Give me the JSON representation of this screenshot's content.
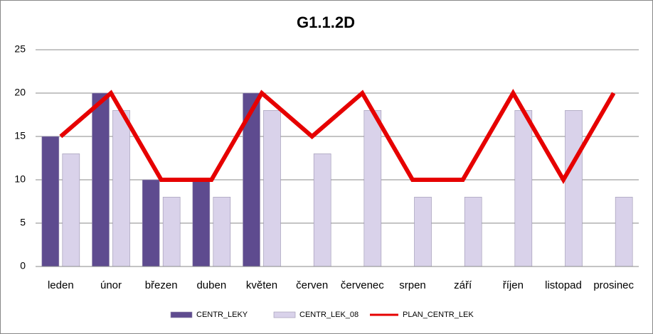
{
  "chart_data": {
    "type": "bar",
    "title": "G1.1.2D",
    "categories": [
      "leden",
      "únor",
      "březen",
      "duben",
      "květen",
      "červen",
      "červenec",
      "srpen",
      "září",
      "říjen",
      "listopad",
      "prosinec"
    ],
    "series": [
      {
        "name": "CENTR_LEKY",
        "color": "#5e4b8f",
        "type": "bar",
        "values": [
          15,
          20,
          10,
          10,
          20,
          null,
          null,
          null,
          null,
          null,
          null,
          null
        ]
      },
      {
        "name": "CENTR_LEK_08",
        "color": "#d9d2ea",
        "type": "bar",
        "values": [
          13,
          18,
          8,
          8,
          18,
          13,
          18,
          8,
          8,
          18,
          18,
          8
        ]
      },
      {
        "name": "PLAN_CENTR_LEK",
        "color": "#e60000",
        "type": "line",
        "values": [
          15,
          20,
          10,
          10,
          20,
          15,
          20,
          10,
          10,
          20,
          10,
          20
        ]
      }
    ],
    "ylim": [
      0,
      25
    ],
    "yticks": [
      0,
      5,
      10,
      15,
      20,
      25
    ],
    "grid": true,
    "legend": "bottom"
  }
}
